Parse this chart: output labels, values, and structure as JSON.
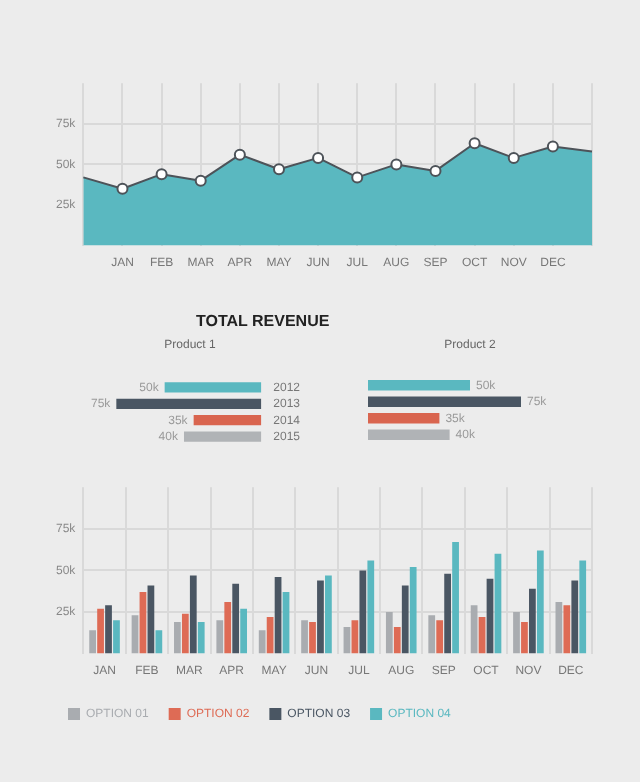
{
  "chart_data": [
    {
      "type": "area",
      "categories": [
        null,
        "JAN",
        "FEB",
        "MAR",
        "APR",
        "MAY",
        "JUN",
        "JUL",
        "AUG",
        "SEP",
        "OCT",
        "NOV",
        "DEC",
        null
      ],
      "series": [
        {
          "color": "#5ab8c0",
          "values": [
            42,
            35,
            44,
            40,
            56,
            47,
            54,
            42,
            50,
            46,
            63,
            54,
            61,
            58
          ]
        }
      ],
      "ylim": [
        0,
        100
      ],
      "yticks": [
        {
          "value": 25,
          "label": "25k"
        },
        {
          "value": 50,
          "label": "50k"
        },
        {
          "value": 75,
          "label": "75k"
        }
      ],
      "grid": true,
      "marker": "circle"
    },
    {
      "type": "bar",
      "orientation": "horizontal",
      "title": "TOTAL REVENUE",
      "subtitle": "Product 1",
      "categories": [
        "2012",
        "2013",
        "2014",
        "2015"
      ],
      "values": [
        50,
        75,
        35,
        40
      ],
      "colors": [
        "#5ab8c0",
        "#4a5663",
        "#d9654f",
        "#b0b3b6"
      ],
      "value_labels": [
        "50k",
        "75k",
        "35k",
        "40k"
      ],
      "tick_labels": "y"
    },
    {
      "type": "bar",
      "orientation": "horizontal",
      "subtitle": "Product 2",
      "categories": [
        "2012",
        "2013",
        "2014",
        "2015"
      ],
      "values": [
        50,
        75,
        35,
        40
      ],
      "colors": [
        "#5ab8c0",
        "#4a5663",
        "#d9654f",
        "#b0b3b6"
      ],
      "value_labels": [
        "50k",
        "75k",
        "35k",
        "40k"
      ],
      "tick_labels": false
    },
    {
      "type": "bar",
      "categories": [
        "JAN",
        "FEB",
        "MAR",
        "APR",
        "MAY",
        "JUN",
        "JUL",
        "AUG",
        "SEP",
        "OCT",
        "NOV",
        "DEC"
      ],
      "series": [
        {
          "name": "OPTION 01",
          "color": "#a9acb0",
          "values": [
            14,
            23,
            19,
            20,
            14,
            20,
            16,
            25,
            23,
            29,
            25,
            31
          ]
        },
        {
          "name": "OPTION 02",
          "color": "#de6b55",
          "values": [
            27,
            37,
            24,
            31,
            22,
            19,
            20,
            16,
            20,
            22,
            19,
            29
          ]
        },
        {
          "name": "OPTION 03",
          "color": "#4a5663",
          "values": [
            29,
            41,
            47,
            42,
            46,
            44,
            50,
            41,
            48,
            45,
            39,
            44
          ]
        },
        {
          "name": "OPTION 04",
          "color": "#5ab8c0",
          "values": [
            20,
            14,
            19,
            27,
            37,
            47,
            56,
            52,
            67,
            60,
            62,
            56
          ]
        }
      ],
      "ylim": [
        0,
        100
      ],
      "yticks": [
        {
          "value": 25,
          "label": "25k"
        },
        {
          "value": 50,
          "label": "50k"
        },
        {
          "value": 75,
          "label": "75k"
        }
      ],
      "grid": true,
      "legend": "bottom"
    }
  ]
}
